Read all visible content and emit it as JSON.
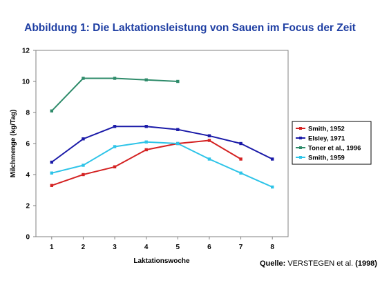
{
  "chart_data": {
    "type": "line",
    "title": "Abbildung 1: Die Laktationsleistung von Sauen im Focus der Zeit",
    "xlabel": "Laktationswoche",
    "ylabel": "Milchmenge (kg/Tag)",
    "xlim": [
      0.5,
      8.5
    ],
    "ylim": [
      0,
      12
    ],
    "xticks": [
      1,
      2,
      3,
      4,
      5,
      6,
      7,
      8
    ],
    "yticks": [
      0,
      2,
      4,
      6,
      8,
      10,
      12
    ],
    "grid": false,
    "legend": "right",
    "series": [
      {
        "name": "Smith, 1952",
        "color": "#d42222",
        "x": [
          1,
          2,
          3,
          4,
          5,
          6,
          7
        ],
        "y": [
          3.3,
          4.0,
          4.5,
          5.6,
          6.0,
          6.2,
          5.0
        ]
      },
      {
        "name": "Elsley, 1971",
        "color": "#1a1aa8",
        "x": [
          1,
          2,
          3,
          4,
          5,
          6,
          7,
          8
        ],
        "y": [
          4.8,
          6.3,
          7.1,
          7.1,
          6.9,
          6.5,
          6.0,
          5.0
        ]
      },
      {
        "name": "Toner et al., 1996",
        "color": "#2e8b6a",
        "x": [
          1,
          2,
          3,
          4,
          5
        ],
        "y": [
          8.1,
          10.2,
          10.2,
          10.1,
          10.0
        ]
      },
      {
        "name": "Smith, 1959",
        "color": "#2ec4e8",
        "x": [
          1,
          2,
          3,
          4,
          5,
          6,
          7,
          8
        ],
        "y": [
          4.1,
          4.6,
          5.8,
          6.1,
          6.0,
          5.0,
          4.1,
          3.2
        ]
      }
    ]
  },
  "source": {
    "prefix": "Quelle: ",
    "name": "VERSTEGEN et al.",
    "suffix": " (1998)"
  }
}
